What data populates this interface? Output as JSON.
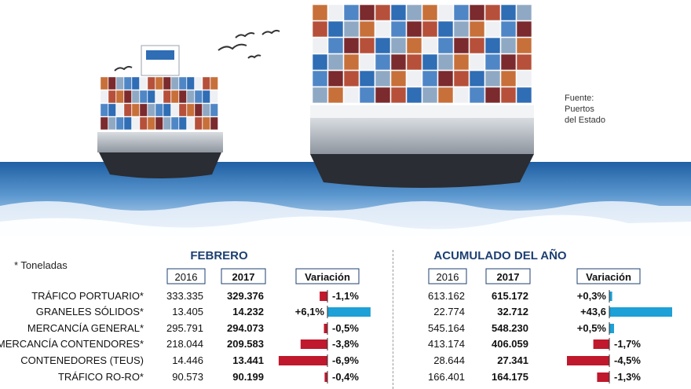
{
  "source": "Fuente:\nPuertos\ndel Estado",
  "unit_note": "* Toneladas",
  "colors": {
    "positive": "#1da1d6",
    "negative": "#c0182c",
    "header_blue": "#1d3f72",
    "water": "#2b6fb0"
  },
  "chart_data": [
    {
      "type": "table",
      "title": "FEBRERO",
      "columns": [
        "2016",
        "2017",
        "Variación"
      ],
      "rows": [
        {
          "label": "TRÁFICO PORTUARIO*",
          "v2016": "333.335",
          "v2017": "329.376",
          "variation": -1.1,
          "variation_label": "-1,1%"
        },
        {
          "label": "GRANELES SÓLIDOS*",
          "v2016": "13.405",
          "v2017": "14.232",
          "variation": 6.1,
          "variation_label": "+6,1%"
        },
        {
          "label": "MERCANCÍA GENERAL*",
          "v2016": "295.791",
          "v2017": "294.073",
          "variation": -0.5,
          "variation_label": "-0,5%"
        },
        {
          "label": "MERCANCÍA CONTENDORES*",
          "v2016": "218.044",
          "v2017": "209.583",
          "variation": -3.8,
          "variation_label": "-3,8%"
        },
        {
          "label": "CONTENEDORES (TEUS)",
          "v2016": "14.446",
          "v2017": "13.441",
          "variation": -6.9,
          "variation_label": "-6,9%"
        },
        {
          "label": "TRÁFICO RO-RO*",
          "v2016": "90.573",
          "v2017": "90.199",
          "variation": -0.4,
          "variation_label": "-0,4%"
        }
      ]
    },
    {
      "type": "table",
      "title": "ACUMULADO DEL AÑO",
      "columns": [
        "2016",
        "2017",
        "Variación"
      ],
      "rows": [
        {
          "v2016": "613.162",
          "v2017": "615.172",
          "variation": 0.3,
          "variation_label": "+0,3%"
        },
        {
          "v2016": "22.774",
          "v2017": "32.712",
          "variation": 43.6,
          "variation_label": "+43,6"
        },
        {
          "v2016": "545.164",
          "v2017": "548.230",
          "variation": 0.5,
          "variation_label": "+0,5%"
        },
        {
          "v2016": "413.174",
          "v2017": "406.059",
          "variation": -1.7,
          "variation_label": "-1,7%"
        },
        {
          "v2016": "28.644",
          "v2017": "27.341",
          "variation": -4.5,
          "variation_label": "-4,5%"
        },
        {
          "v2016": "166.401",
          "v2017": "164.175",
          "variation": -1.3,
          "variation_label": "-1,3%"
        }
      ]
    }
  ]
}
